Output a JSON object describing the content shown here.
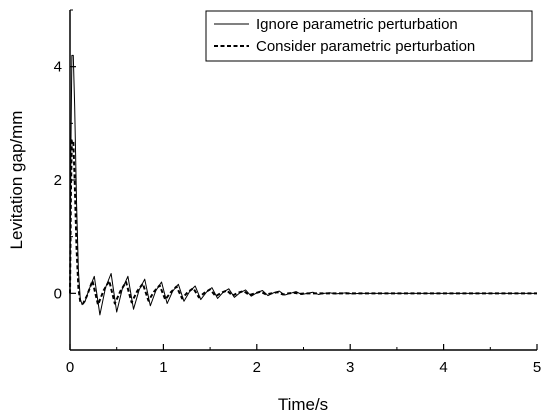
{
  "chart_data": {
    "type": "line",
    "title": "",
    "xlabel": "Time/s",
    "ylabel": "Levitation gap/mm",
    "xlim": [
      0,
      5
    ],
    "ylim": [
      -1,
      5
    ],
    "x_ticks": [
      "0",
      "1",
      "2",
      "3",
      "4",
      "5"
    ],
    "y_ticks": [
      "0",
      "2",
      "4"
    ],
    "grid": false,
    "legend_position": "top-right",
    "series": [
      {
        "name": "Ignore parametric perturbation",
        "style": "solid",
        "color": "#000000",
        "x": [
          0.0,
          0.01,
          0.02,
          0.035,
          0.05,
          0.07,
          0.09,
          0.11,
          0.13,
          0.16,
          0.2,
          0.26,
          0.32,
          0.38,
          0.44,
          0.5,
          0.56,
          0.62,
          0.68,
          0.74,
          0.8,
          0.86,
          0.92,
          0.98,
          1.04,
          1.1,
          1.16,
          1.22,
          1.28,
          1.34,
          1.4,
          1.46,
          1.52,
          1.58,
          1.64,
          1.7,
          1.76,
          1.82,
          1.88,
          1.94,
          2.0,
          2.06,
          2.12,
          2.18,
          2.24,
          2.3,
          2.36,
          2.42,
          2.48,
          2.54,
          2.6,
          2.66,
          2.72,
          2.78,
          2.84,
          2.9,
          2.96,
          3.02,
          3.1,
          3.2,
          3.3,
          3.5,
          4.0,
          4.5,
          5.0
        ],
        "y": [
          0.0,
          2.6,
          4.2,
          4.2,
          3.3,
          1.6,
          0.4,
          -0.1,
          -0.2,
          -0.15,
          0.05,
          0.3,
          -0.38,
          0.1,
          0.35,
          -0.33,
          0.08,
          0.3,
          -0.28,
          0.06,
          0.25,
          -0.22,
          0.05,
          0.2,
          -0.18,
          0.04,
          0.16,
          -0.14,
          0.03,
          0.13,
          -0.11,
          0.02,
          0.1,
          -0.09,
          0.02,
          0.08,
          -0.07,
          0.01,
          0.06,
          -0.05,
          0.01,
          0.05,
          -0.04,
          0.01,
          0.04,
          -0.03,
          0.0,
          0.03,
          -0.02,
          0.0,
          0.02,
          -0.02,
          0.0,
          0.01,
          -0.01,
          0.0,
          0.01,
          -0.01,
          0.0,
          0.0,
          0.0,
          0.0,
          0.0,
          0.0,
          0.0
        ]
      },
      {
        "name": "Consider parametric perturbation",
        "style": "dashed",
        "color": "#000000",
        "x": [
          0.0,
          0.01,
          0.02,
          0.035,
          0.05,
          0.07,
          0.09,
          0.11,
          0.14,
          0.18,
          0.24,
          0.3,
          0.36,
          0.42,
          0.48,
          0.54,
          0.6,
          0.66,
          0.72,
          0.78,
          0.84,
          0.9,
          0.96,
          1.02,
          1.08,
          1.14,
          1.2,
          1.26,
          1.32,
          1.38,
          1.44,
          1.5,
          1.56,
          1.62,
          1.68,
          1.74,
          1.8,
          1.86,
          1.92,
          1.98,
          2.04,
          2.1,
          2.16,
          2.22,
          2.28,
          2.34,
          2.4,
          2.46,
          2.52,
          2.6,
          2.7,
          2.8,
          2.9,
          3.0,
          3.5,
          4.0,
          4.5,
          5.0
        ],
        "y": [
          0.0,
          1.8,
          2.7,
          2.7,
          2.0,
          0.8,
          0.1,
          -0.15,
          -0.18,
          -0.05,
          0.22,
          -0.2,
          0.05,
          0.22,
          -0.18,
          0.04,
          0.2,
          -0.16,
          0.04,
          0.17,
          -0.13,
          0.03,
          0.14,
          -0.11,
          0.02,
          0.12,
          -0.09,
          0.02,
          0.09,
          -0.07,
          0.01,
          0.07,
          -0.05,
          0.01,
          0.05,
          -0.04,
          0.01,
          0.04,
          -0.03,
          0.0,
          0.03,
          -0.02,
          0.0,
          0.02,
          -0.02,
          0.0,
          0.01,
          -0.01,
          0.0,
          0.0,
          0.0,
          0.0,
          0.0,
          0.0,
          0.0,
          0.0,
          0.0,
          0.0
        ]
      }
    ]
  }
}
